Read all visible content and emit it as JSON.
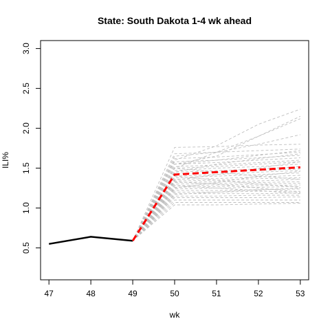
{
  "chart_data": {
    "type": "line",
    "title": "State: South Dakota 1-4 wk ahead",
    "xlabel": "wk",
    "ylabel": "ILI%",
    "xlim": [
      46.8,
      53.2
    ],
    "ylim": [
      0.1,
      3.1
    ],
    "xticks": [
      "47",
      "48",
      "49",
      "50",
      "51",
      "52",
      "53"
    ],
    "yticks": [
      "0.5",
      "1.0",
      "1.5",
      "2.0",
      "2.5",
      "3.0"
    ],
    "grid": false,
    "legend": "none",
    "colors": {
      "observed": "#000000",
      "forecast_mean": "#ff0000",
      "samples": "#bebebe"
    },
    "observed": {
      "x": [
        47,
        48,
        49
      ],
      "y": [
        0.55,
        0.64,
        0.59
      ]
    },
    "forecast_mean": {
      "x": [
        49,
        50,
        51,
        52,
        53
      ],
      "y": [
        0.59,
        1.42,
        1.45,
        1.48,
        1.51
      ]
    },
    "samples": {
      "x": [
        49,
        50,
        51,
        52,
        53
      ],
      "series": [
        [
          0.59,
          1.76,
          1.77,
          1.79,
          1.8
        ],
        [
          0.59,
          1.6,
          1.78,
          2.05,
          2.24
        ],
        [
          0.59,
          1.55,
          1.65,
          1.9,
          2.15
        ],
        [
          0.59,
          1.5,
          1.7,
          1.9,
          2.12
        ],
        [
          0.59,
          1.65,
          1.7,
          1.8,
          1.92
        ],
        [
          0.59,
          1.68,
          1.7,
          1.72,
          1.74
        ],
        [
          0.59,
          1.62,
          1.64,
          1.67,
          1.7
        ],
        [
          0.59,
          1.58,
          1.6,
          1.63,
          1.66
        ],
        [
          0.59,
          1.55,
          1.57,
          1.6,
          1.63
        ],
        [
          0.59,
          1.52,
          1.54,
          1.57,
          1.6
        ],
        [
          0.59,
          1.5,
          1.52,
          1.55,
          1.58
        ],
        [
          0.59,
          1.47,
          1.5,
          1.52,
          1.55
        ],
        [
          0.59,
          1.45,
          1.47,
          1.49,
          1.52
        ],
        [
          0.59,
          1.43,
          1.45,
          1.47,
          1.49
        ],
        [
          0.59,
          1.4,
          1.42,
          1.45,
          1.47
        ],
        [
          0.59,
          1.38,
          1.4,
          1.42,
          1.44
        ],
        [
          0.59,
          1.36,
          1.37,
          1.39,
          1.41
        ],
        [
          0.59,
          1.34,
          1.35,
          1.37,
          1.38
        ],
        [
          0.59,
          1.32,
          1.33,
          1.34,
          1.36
        ],
        [
          0.59,
          1.3,
          1.31,
          1.32,
          1.33
        ],
        [
          0.59,
          1.28,
          1.29,
          1.3,
          1.31
        ],
        [
          0.59,
          1.26,
          1.27,
          1.28,
          1.29
        ],
        [
          0.59,
          1.24,
          1.25,
          1.26,
          1.27
        ],
        [
          0.59,
          1.22,
          1.22,
          1.23,
          1.24
        ],
        [
          0.59,
          1.2,
          1.2,
          1.21,
          1.21
        ],
        [
          0.59,
          1.18,
          1.18,
          1.18,
          1.19
        ],
        [
          0.59,
          1.15,
          1.15,
          1.16,
          1.16
        ],
        [
          0.59,
          1.13,
          1.13,
          1.13,
          1.14
        ],
        [
          0.59,
          1.1,
          1.1,
          1.1,
          1.1
        ],
        [
          0.59,
          1.07,
          1.07,
          1.07,
          1.07
        ],
        [
          0.59,
          1.04,
          1.04,
          1.05,
          1.06
        ],
        [
          0.59,
          1.33,
          1.3,
          1.25,
          1.2
        ],
        [
          0.59,
          1.45,
          1.55,
          1.62,
          1.68
        ],
        [
          0.59,
          1.25,
          1.32,
          1.4,
          1.46
        ],
        [
          0.59,
          1.5,
          1.45,
          1.4,
          1.36
        ],
        [
          0.59,
          1.4,
          1.35,
          1.3,
          1.26
        ],
        [
          0.59,
          1.17,
          1.2,
          1.23,
          1.25
        ],
        [
          0.59,
          1.55,
          1.6,
          1.66,
          1.72
        ],
        [
          0.59,
          1.35,
          1.42,
          1.5,
          1.58
        ],
        [
          0.59,
          1.28,
          1.25,
          1.22,
          1.18
        ]
      ]
    }
  }
}
